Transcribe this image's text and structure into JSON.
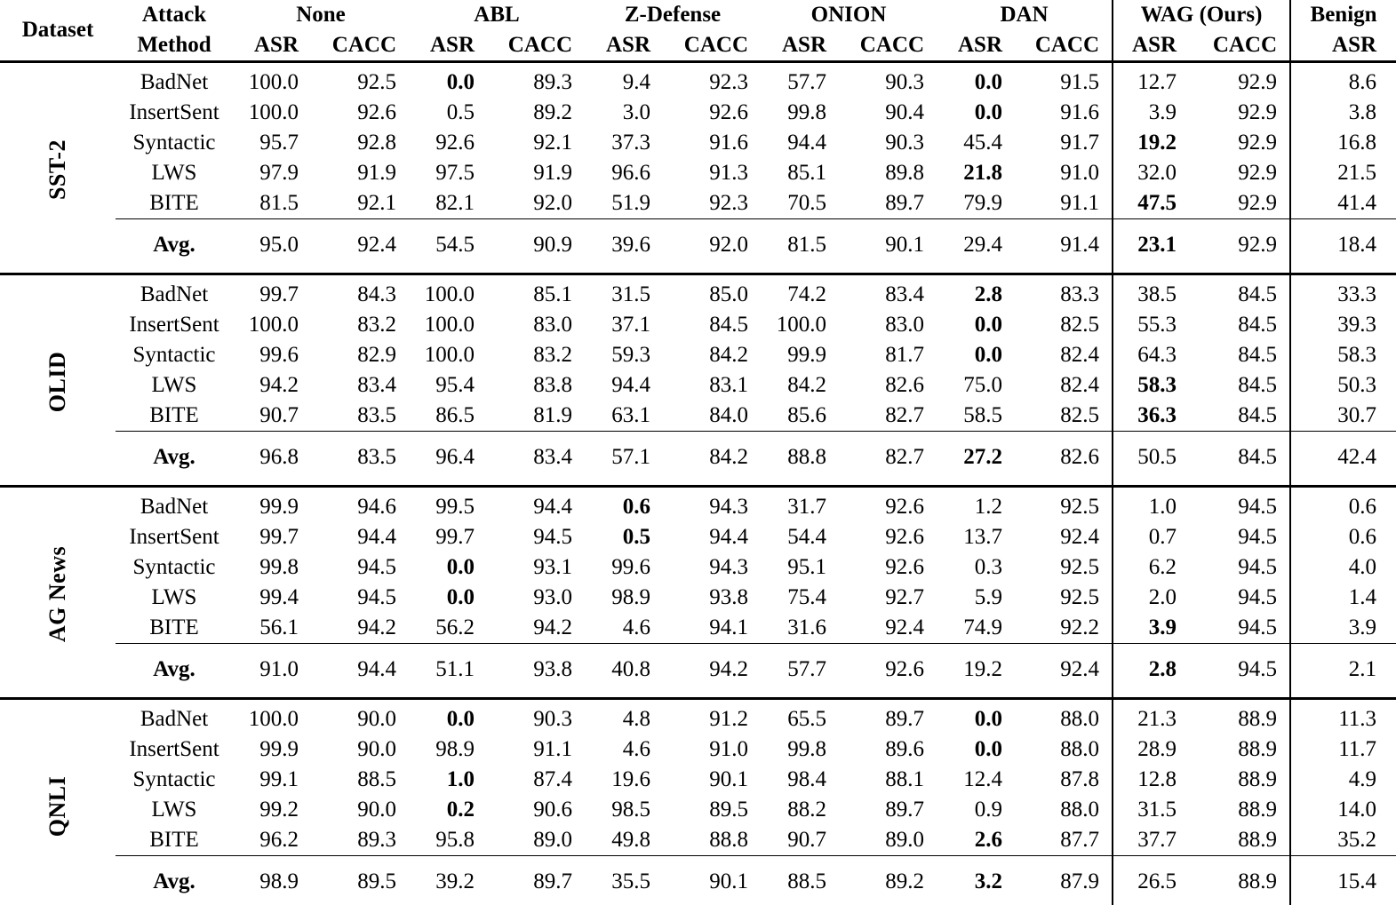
{
  "colors": {
    "background": "#ffffff",
    "text": "#000000",
    "rules": "#000000"
  },
  "table": {
    "header": {
      "dataset": "Dataset",
      "attack_line1": "Attack",
      "attack_line2": "Method",
      "columns": [
        {
          "label": "None",
          "subs": [
            "ASR",
            "CACC"
          ],
          "vline_before": false
        },
        {
          "label": "ABL",
          "subs": [
            "ASR",
            "CACC"
          ],
          "vline_before": false
        },
        {
          "label": "Z-Defense",
          "subs": [
            "ASR",
            "CACC"
          ],
          "vline_before": false
        },
        {
          "label": "ONION",
          "subs": [
            "ASR",
            "CACC"
          ],
          "vline_before": false
        },
        {
          "label": "DAN",
          "subs": [
            "ASR",
            "CACC"
          ],
          "vline_before": false
        },
        {
          "label": "WAG (Ours)",
          "subs": [
            "ASR",
            "CACC"
          ],
          "vline_before": true
        },
        {
          "label": "Benign",
          "subs": [
            "ASR"
          ],
          "vline_before": true
        }
      ]
    },
    "groups": [
      {
        "dataset": "SST-2",
        "rows": [
          {
            "method": "BadNet",
            "values": [
              "100.0",
              "92.5",
              "0.0",
              "89.3",
              "9.4",
              "92.3",
              "57.7",
              "90.3",
              "0.0",
              "91.5",
              "12.7",
              "92.9",
              "8.6"
            ],
            "bold": [
              2,
              8
            ]
          },
          {
            "method": "InsertSent",
            "values": [
              "100.0",
              "92.6",
              "0.5",
              "89.2",
              "3.0",
              "92.6",
              "99.8",
              "90.4",
              "0.0",
              "91.6",
              "3.9",
              "92.9",
              "3.8"
            ],
            "bold": [
              8
            ]
          },
          {
            "method": "Syntactic",
            "values": [
              "95.7",
              "92.8",
              "92.6",
              "92.1",
              "37.3",
              "91.6",
              "94.4",
              "90.3",
              "45.4",
              "91.7",
              "19.2",
              "92.9",
              "16.8"
            ],
            "bold": [
              10
            ]
          },
          {
            "method": "LWS",
            "values": [
              "97.9",
              "91.9",
              "97.5",
              "91.9",
              "96.6",
              "91.3",
              "85.1",
              "89.8",
              "21.8",
              "91.0",
              "32.0",
              "92.9",
              "21.5"
            ],
            "bold": [
              8
            ]
          },
          {
            "method": "BITE",
            "values": [
              "81.5",
              "92.1",
              "82.1",
              "92.0",
              "51.9",
              "92.3",
              "70.5",
              "89.7",
              "79.9",
              "91.1",
              "47.5",
              "92.9",
              "41.4"
            ],
            "bold": [
              10
            ]
          }
        ],
        "avg": {
          "label": "Avg.",
          "values": [
            "95.0",
            "92.4",
            "54.5",
            "90.9",
            "39.6",
            "92.0",
            "81.5",
            "90.1",
            "29.4",
            "91.4",
            "23.1",
            "92.9",
            "18.4"
          ],
          "bold": [
            10
          ]
        }
      },
      {
        "dataset": "OLID",
        "rows": [
          {
            "method": "BadNet",
            "values": [
              "99.7",
              "84.3",
              "100.0",
              "85.1",
              "31.5",
              "85.0",
              "74.2",
              "83.4",
              "2.8",
              "83.3",
              "38.5",
              "84.5",
              "33.3"
            ],
            "bold": [
              8
            ]
          },
          {
            "method": "InsertSent",
            "values": [
              "100.0",
              "83.2",
              "100.0",
              "83.0",
              "37.1",
              "84.5",
              "100.0",
              "83.0",
              "0.0",
              "82.5",
              "55.3",
              "84.5",
              "39.3"
            ],
            "bold": [
              8
            ]
          },
          {
            "method": "Syntactic",
            "values": [
              "99.6",
              "82.9",
              "100.0",
              "83.2",
              "59.3",
              "84.2",
              "99.9",
              "81.7",
              "0.0",
              "82.4",
              "64.3",
              "84.5",
              "58.3"
            ],
            "bold": [
              8
            ]
          },
          {
            "method": "LWS",
            "values": [
              "94.2",
              "83.4",
              "95.4",
              "83.8",
              "94.4",
              "83.1",
              "84.2",
              "82.6",
              "75.0",
              "82.4",
              "58.3",
              "84.5",
              "50.3"
            ],
            "bold": [
              10
            ]
          },
          {
            "method": "BITE",
            "values": [
              "90.7",
              "83.5",
              "86.5",
              "81.9",
              "63.1",
              "84.0",
              "85.6",
              "82.7",
              "58.5",
              "82.5",
              "36.3",
              "84.5",
              "30.7"
            ],
            "bold": [
              10
            ]
          }
        ],
        "avg": {
          "label": "Avg.",
          "values": [
            "96.8",
            "83.5",
            "96.4",
            "83.4",
            "57.1",
            "84.2",
            "88.8",
            "82.7",
            "27.2",
            "82.6",
            "50.5",
            "84.5",
            "42.4"
          ],
          "bold": [
            8
          ]
        }
      },
      {
        "dataset": "AG News",
        "rows": [
          {
            "method": "BadNet",
            "values": [
              "99.9",
              "94.6",
              "99.5",
              "94.4",
              "0.6",
              "94.3",
              "31.7",
              "92.6",
              "1.2",
              "92.5",
              "1.0",
              "94.5",
              "0.6"
            ],
            "bold": [
              4
            ]
          },
          {
            "method": "InsertSent",
            "values": [
              "99.7",
              "94.4",
              "99.7",
              "94.5",
              "0.5",
              "94.4",
              "54.4",
              "92.6",
              "13.7",
              "92.4",
              "0.7",
              "94.5",
              "0.6"
            ],
            "bold": [
              4
            ]
          },
          {
            "method": "Syntactic",
            "values": [
              "99.8",
              "94.5",
              "0.0",
              "93.1",
              "99.6",
              "94.3",
              "95.1",
              "92.6",
              "0.3",
              "92.5",
              "6.2",
              "94.5",
              "4.0"
            ],
            "bold": [
              2
            ]
          },
          {
            "method": "LWS",
            "values": [
              "99.4",
              "94.5",
              "0.0",
              "93.0",
              "98.9",
              "93.8",
              "75.4",
              "92.7",
              "5.9",
              "92.5",
              "2.0",
              "94.5",
              "1.4"
            ],
            "bold": [
              2
            ]
          },
          {
            "method": "BITE",
            "values": [
              "56.1",
              "94.2",
              "56.2",
              "94.2",
              "4.6",
              "94.1",
              "31.6",
              "92.4",
              "74.9",
              "92.2",
              "3.9",
              "94.5",
              "3.9"
            ],
            "bold": [
              10
            ]
          }
        ],
        "avg": {
          "label": "Avg.",
          "values": [
            "91.0",
            "94.4",
            "51.1",
            "93.8",
            "40.8",
            "94.2",
            "57.7",
            "92.6",
            "19.2",
            "92.4",
            "2.8",
            "94.5",
            "2.1"
          ],
          "bold": [
            10
          ]
        }
      },
      {
        "dataset": "QNLI",
        "rows": [
          {
            "method": "BadNet",
            "values": [
              "100.0",
              "90.0",
              "0.0",
              "90.3",
              "4.8",
              "91.2",
              "65.5",
              "89.7",
              "0.0",
              "88.0",
              "21.3",
              "88.9",
              "11.3"
            ],
            "bold": [
              2,
              8
            ]
          },
          {
            "method": "InsertSent",
            "values": [
              "99.9",
              "90.0",
              "98.9",
              "91.1",
              "4.6",
              "91.0",
              "99.8",
              "89.6",
              "0.0",
              "88.0",
              "28.9",
              "88.9",
              "11.7"
            ],
            "bold": [
              8
            ]
          },
          {
            "method": "Syntactic",
            "values": [
              "99.1",
              "88.5",
              "1.0",
              "87.4",
              "19.6",
              "90.1",
              "98.4",
              "88.1",
              "12.4",
              "87.8",
              "12.8",
              "88.9",
              "4.9"
            ],
            "bold": [
              2
            ]
          },
          {
            "method": "LWS",
            "values": [
              "99.2",
              "90.0",
              "0.2",
              "90.6",
              "98.5",
              "89.5",
              "88.2",
              "89.7",
              "0.9",
              "88.0",
              "31.5",
              "88.9",
              "14.0"
            ],
            "bold": [
              2
            ]
          },
          {
            "method": "BITE",
            "values": [
              "96.2",
              "89.3",
              "95.8",
              "89.0",
              "49.8",
              "88.8",
              "90.7",
              "89.0",
              "2.6",
              "87.7",
              "37.7",
              "88.9",
              "35.2"
            ],
            "bold": [
              8
            ]
          }
        ],
        "avg": {
          "label": "Avg.",
          "values": [
            "98.9",
            "89.5",
            "39.2",
            "89.7",
            "35.5",
            "90.1",
            "88.5",
            "89.2",
            "3.2",
            "87.9",
            "26.5",
            "88.9",
            "15.4"
          ],
          "bold": [
            8
          ]
        }
      }
    ]
  }
}
